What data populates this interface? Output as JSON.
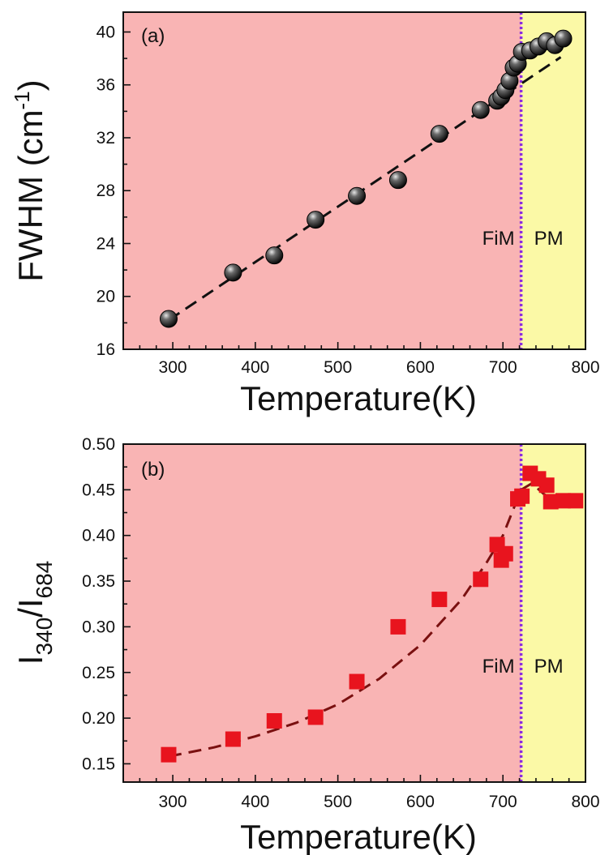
{
  "chart_data": [
    {
      "type": "scatter",
      "panel_label": "(a)",
      "xlabel": "Temperature(K)",
      "ylabel": {
        "main": "FWHM (cm",
        "sup": "-1",
        "tail": ")"
      },
      "xlim": [
        240,
        800
      ],
      "ylim": [
        16,
        41.5
      ],
      "xticks": [
        300,
        400,
        500,
        600,
        700,
        800
      ],
      "yticks": [
        16,
        20,
        24,
        28,
        32,
        36,
        40
      ],
      "ytick_labels": [
        "16",
        "20",
        "24",
        "28",
        "32",
        "36",
        "40"
      ],
      "transition_x": 722,
      "region_colors": {
        "fim": "#f9b4b4",
        "pm": "#fbf9a6"
      },
      "region_labels": {
        "fim": "FiM",
        "pm": "PM"
      },
      "marker": "sphere",
      "marker_color": "#222222",
      "series": [
        {
          "x": [
            295,
            373,
            423,
            473,
            523,
            573,
            623,
            673,
            693,
            698,
            703,
            708,
            713,
            718,
            723,
            733,
            743,
            753,
            763,
            773
          ],
          "y": [
            18.3,
            21.8,
            23.1,
            25.8,
            27.6,
            28.8,
            32.3,
            34.1,
            34.8,
            35.1,
            35.6,
            36.3,
            37.3,
            37.6,
            38.5,
            38.6,
            38.9,
            39.3,
            39.0,
            39.5
          ]
        }
      ],
      "fit": {
        "style": "dashed",
        "color": "#111111",
        "x": [
          295,
          770
        ],
        "y": [
          18.2,
          38.1
        ]
      }
    },
    {
      "type": "scatter",
      "panel_label": "(b)",
      "xlabel": "Temperature(K)",
      "ylabel": {
        "main": "I",
        "sub1": "340",
        "mid": "/I",
        "sub2": "684"
      },
      "xlim": [
        240,
        800
      ],
      "ylim": [
        0.13,
        0.5
      ],
      "xticks": [
        300,
        400,
        500,
        600,
        700,
        800
      ],
      "yticks": [
        0.15,
        0.2,
        0.25,
        0.3,
        0.35,
        0.4,
        0.45,
        0.5
      ],
      "ytick_labels": [
        "0.15",
        "0.20",
        "0.25",
        "0.30",
        "0.35",
        "0.40",
        "0.45",
        "0.50"
      ],
      "transition_x": 722,
      "region_colors": {
        "fim": "#f9b4b4",
        "pm": "#fbf9a6"
      },
      "region_labels": {
        "fim": "FiM",
        "pm": "PM"
      },
      "marker": "square",
      "marker_color": "#e8141e",
      "series": [
        {
          "x": [
            295,
            373,
            423,
            473,
            523,
            573,
            623,
            673,
            693,
            698,
            703,
            718,
            723,
            733,
            743,
            753,
            758,
            773,
            788
          ],
          "y": [
            0.16,
            0.177,
            0.197,
            0.201,
            0.24,
            0.3,
            0.33,
            0.352,
            0.39,
            0.373,
            0.38,
            0.44,
            0.443,
            0.468,
            0.462,
            0.455,
            0.437,
            0.438,
            0.438
          ]
        }
      ],
      "fit": {
        "style": "dashed",
        "color": "#7a1010",
        "x": [
          295,
          350,
          400,
          450,
          500,
          550,
          600,
          650,
          680,
          700,
          722,
          735,
          750,
          765,
          785
        ],
        "y": [
          0.158,
          0.168,
          0.18,
          0.195,
          0.215,
          0.243,
          0.28,
          0.33,
          0.37,
          0.4,
          0.45,
          0.457,
          0.445,
          0.438,
          0.436
        ]
      }
    }
  ]
}
